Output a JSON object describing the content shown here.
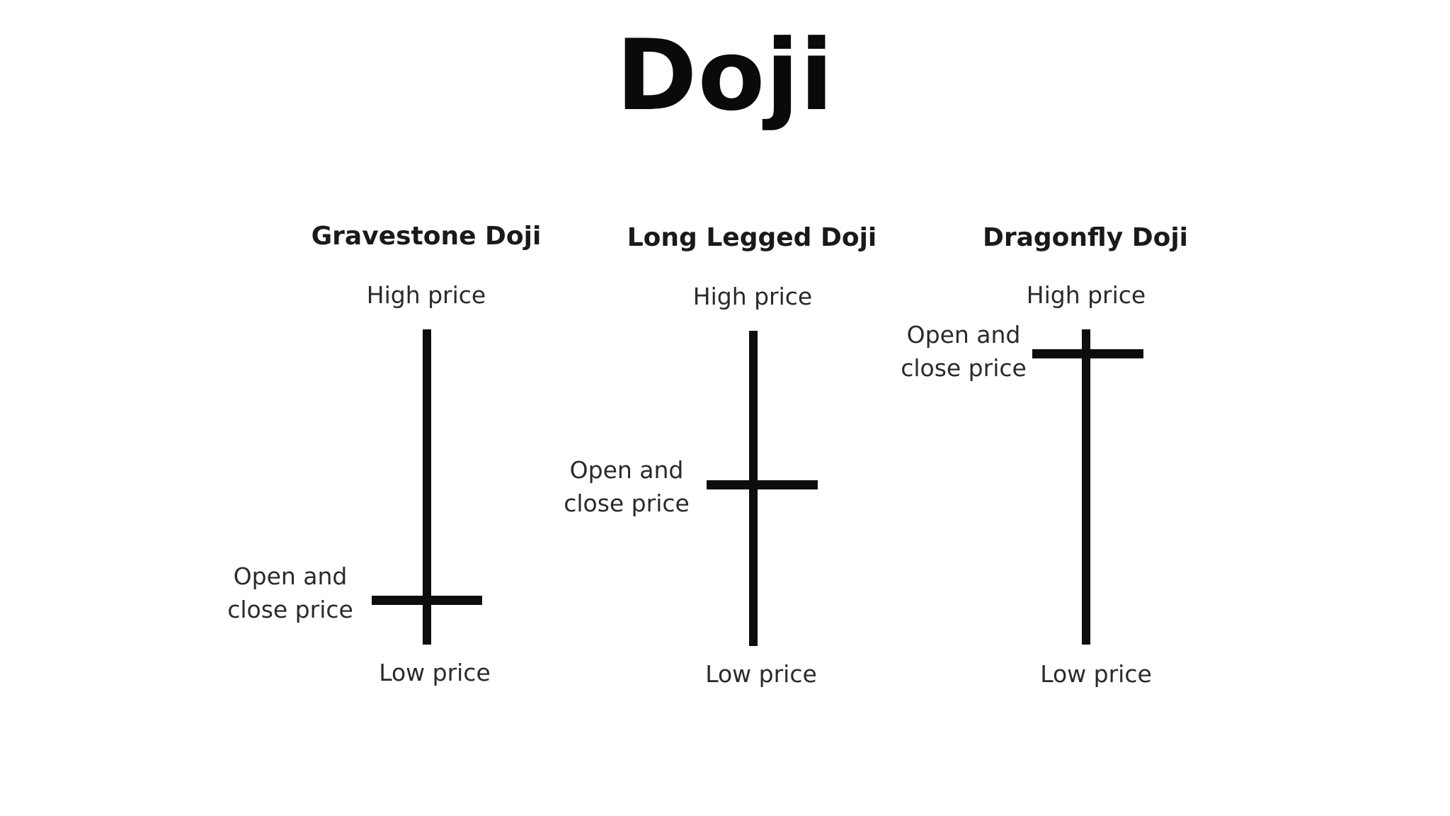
{
  "title": "Doji",
  "colors": {
    "background": "#ffffff",
    "ink": "#0d0d0d"
  },
  "panels": [
    {
      "title": "Gravestone Doji",
      "high_label": "High price",
      "low_label": "Low price",
      "oc_label_line1": "Open and",
      "oc_label_line2": "close price",
      "open_close_level": "low"
    },
    {
      "title": "Long Legged Doji",
      "high_label": "High price",
      "low_label": "Low price",
      "oc_label_line1": "Open and",
      "oc_label_line2": "close price",
      "open_close_level": "middle"
    },
    {
      "title": "Dragonfly Doji",
      "high_label": "High price",
      "low_label": "Low price",
      "oc_label_line1": "Open and",
      "oc_label_line2": "close price",
      "open_close_level": "high"
    }
  ]
}
